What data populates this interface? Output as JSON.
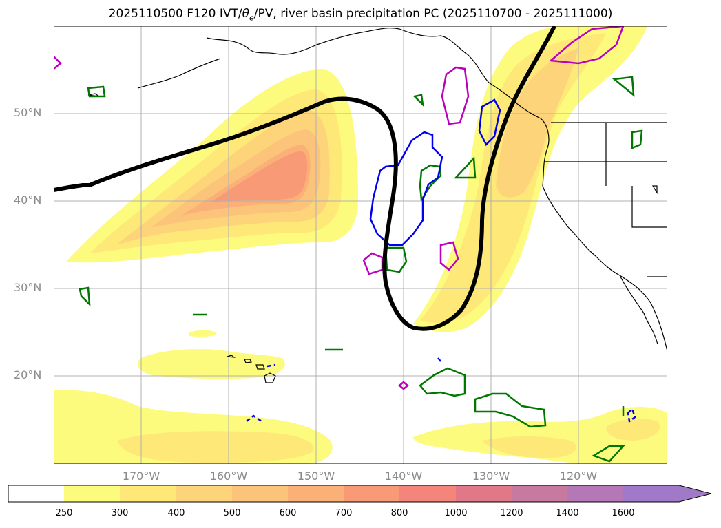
{
  "title": "2025110500 F120 IVT/θe/PV, river basin precipitation PC (2025110700 - 2025111000)",
  "title_parts": {
    "prefix": "2025110500 F120 IVT/",
    "theta": "θ",
    "sub": "e",
    "suffix": "/PV, river basin precipitation PC (2025110700 - 2025111000)"
  },
  "map": {
    "lat_labels": [
      "50°N",
      "40°N",
      "30°N",
      "20°N"
    ],
    "lon_labels": [
      "170°W",
      "160°W",
      "150°W",
      "140°W",
      "130°W",
      "120°W"
    ],
    "gridlines": true
  },
  "colorbar": {
    "levels": [
      "250",
      "300",
      "400",
      "500",
      "600",
      "700",
      "800",
      "1000",
      "1200",
      "1400",
      "1600"
    ],
    "colors": [
      "#ffffff",
      "#fdfb7d",
      "#fde878",
      "#fdd47a",
      "#fcc37a",
      "#fbb078",
      "#f99a77",
      "#f4857b",
      "#e07888",
      "#c8799f",
      "#b478b6",
      "#a07ac8"
    ],
    "extend": "max"
  },
  "colors": {
    "pv_contour": "#000000",
    "theta_cold": "#0000ee",
    "green_contour": "#007700",
    "magenta_contour": "#bb00bb"
  }
}
